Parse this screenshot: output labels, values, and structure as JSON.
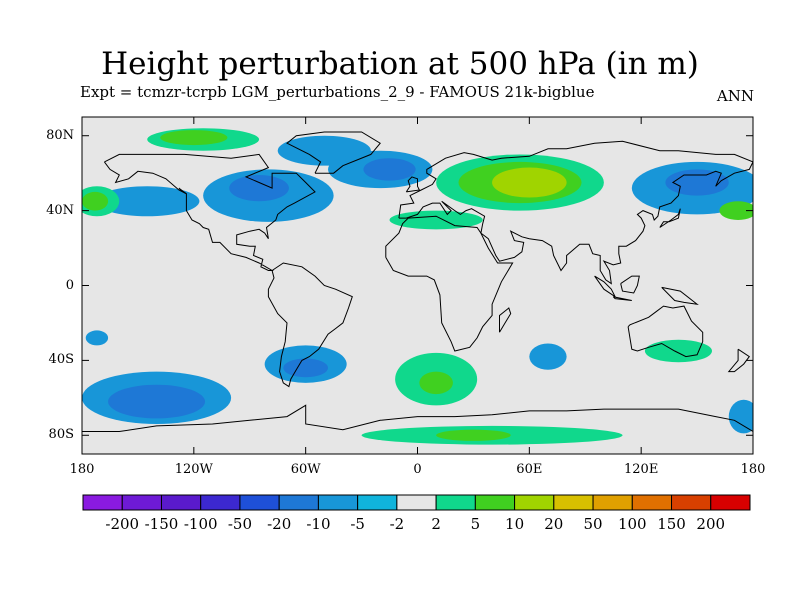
{
  "title": "Height perturbation at 500 hPa (in m)",
  "subtitle": "Expt = tcmzr-tcrpb    LGM_perturbations_2_9 - FAMOUS 21k-bigblue",
  "season": "ANN",
  "map": {
    "projection": "cylindrical-equidistant",
    "lon_range": [
      -180,
      180
    ],
    "lat_range": [
      -90,
      90
    ],
    "background_color": "#e6e6e6",
    "coastline_color": "#000000",
    "lat_ticks": [
      {
        "value": 80,
        "label": "80N"
      },
      {
        "value": 40,
        "label": "40N"
      },
      {
        "value": 0,
        "label": "0"
      },
      {
        "value": -40,
        "label": "40S"
      },
      {
        "value": -80,
        "label": "80S"
      }
    ],
    "lon_ticks": [
      {
        "value": -180,
        "label": "180"
      },
      {
        "value": -120,
        "label": "120W"
      },
      {
        "value": -60,
        "label": "60W"
      },
      {
        "value": 0,
        "label": "0"
      },
      {
        "value": 60,
        "label": "60E"
      },
      {
        "value": 120,
        "label": "120E"
      },
      {
        "value": 180,
        "label": "180"
      }
    ]
  },
  "colorbar": {
    "colors": [
      "#8a1ae0",
      "#6e1ad6",
      "#5a1acc",
      "#3c28d0",
      "#1e50d8",
      "#1e78d6",
      "#1896d8",
      "#10b4dc",
      "#e6e6e6",
      "#10d88c",
      "#40d020",
      "#a0d400",
      "#d8c000",
      "#e0a000",
      "#e07000",
      "#d84000",
      "#d80000"
    ],
    "labels": [
      "-200",
      "-150",
      "-100",
      "-50",
      "-20",
      "-10",
      "-5",
      "-2",
      "2",
      "5",
      "10",
      "20",
      "50",
      "100",
      "150",
      "200"
    ]
  },
  "regions": [
    {
      "name": "north-pacific-low",
      "lon": -145,
      "lat": 45,
      "rx": 28,
      "ry": 8,
      "level": 6
    },
    {
      "name": "north-america-low",
      "lon": -80,
      "lat": 48,
      "rx": 35,
      "ry": 14,
      "level": 6
    },
    {
      "name": "north-america-core",
      "lon": -85,
      "lat": 52,
      "rx": 16,
      "ry": 7,
      "level": 5
    },
    {
      "name": "north-atlantic-low",
      "lon": -20,
      "lat": 62,
      "rx": 28,
      "ry": 10,
      "level": 6
    },
    {
      "name": "north-atlantic-core",
      "lon": -15,
      "lat": 62,
      "rx": 14,
      "ry": 6,
      "level": 5
    },
    {
      "name": "east-asia-low",
      "lon": 150,
      "lat": 52,
      "rx": 35,
      "ry": 14,
      "level": 6
    },
    {
      "name": "east-asia-core",
      "lon": 150,
      "lat": 55,
      "rx": 17,
      "ry": 7,
      "level": 5
    },
    {
      "name": "greenland-low",
      "lon": -50,
      "lat": 72,
      "rx": 25,
      "ry": 8,
      "level": 6
    },
    {
      "name": "eurasia-high",
      "lon": 55,
      "lat": 55,
      "rx": 45,
      "ry": 15,
      "level": 9
    },
    {
      "name": "eurasia-mid",
      "lon": 55,
      "lat": 55,
      "rx": 33,
      "ry": 11,
      "level": 10
    },
    {
      "name": "eurasia-core",
      "lon": 60,
      "lat": 55,
      "rx": 20,
      "ry": 8,
      "level": 11
    },
    {
      "name": "mediterranean-high",
      "lon": 10,
      "lat": 35,
      "rx": 25,
      "ry": 5,
      "level": 9
    },
    {
      "name": "arctic-canada-high",
      "lon": -115,
      "lat": 78,
      "rx": 30,
      "ry": 6,
      "level": 9
    },
    {
      "name": "arctic-canada-core",
      "lon": -120,
      "lat": 79,
      "rx": 18,
      "ry": 4,
      "level": 10
    },
    {
      "name": "west-pacific-high",
      "lon": -172,
      "lat": 45,
      "rx": 12,
      "ry": 8,
      "level": 9
    },
    {
      "name": "west-pacific-core",
      "lon": -173,
      "lat": 45,
      "rx": 7,
      "ry": 5,
      "level": 10
    },
    {
      "name": "east-pacific-high",
      "lon": 172,
      "lat": 40,
      "rx": 10,
      "ry": 5,
      "level": 10
    },
    {
      "name": "south-pacific-low",
      "lon": -140,
      "lat": -60,
      "rx": 40,
      "ry": 14,
      "level": 6
    },
    {
      "name": "south-pacific-core",
      "lon": -140,
      "lat": -62,
      "rx": 26,
      "ry": 9,
      "level": 5
    },
    {
      "name": "south-america-low",
      "lon": -60,
      "lat": -42,
      "rx": 22,
      "ry": 10,
      "level": 6
    },
    {
      "name": "south-america-core",
      "lon": -60,
      "lat": -44,
      "rx": 12,
      "ry": 5,
      "level": 5
    },
    {
      "name": "south-indian-low",
      "lon": 70,
      "lat": -38,
      "rx": 10,
      "ry": 7,
      "level": 6
    },
    {
      "name": "south-atlantic-high",
      "lon": 10,
      "lat": -50,
      "rx": 22,
      "ry": 14,
      "level": 9
    },
    {
      "name": "south-atlantic-core",
      "lon": 10,
      "lat": -52,
      "rx": 9,
      "ry": 6,
      "level": 10
    },
    {
      "name": "antarctic-high",
      "lon": 40,
      "lat": -80,
      "rx": 70,
      "ry": 5,
      "level": 9
    },
    {
      "name": "antarctic-core",
      "lon": 30,
      "lat": -80,
      "rx": 20,
      "ry": 3,
      "level": 10
    },
    {
      "name": "australia-high",
      "lon": 140,
      "lat": -35,
      "rx": 18,
      "ry": 6,
      "level": 9
    },
    {
      "name": "south-west-low",
      "lon": -172,
      "lat": -28,
      "rx": 6,
      "ry": 4,
      "level": 6
    },
    {
      "name": "far-east-south-low",
      "lon": 175,
      "lat": -70,
      "rx": 8,
      "ry": 9,
      "level": 6
    }
  ]
}
